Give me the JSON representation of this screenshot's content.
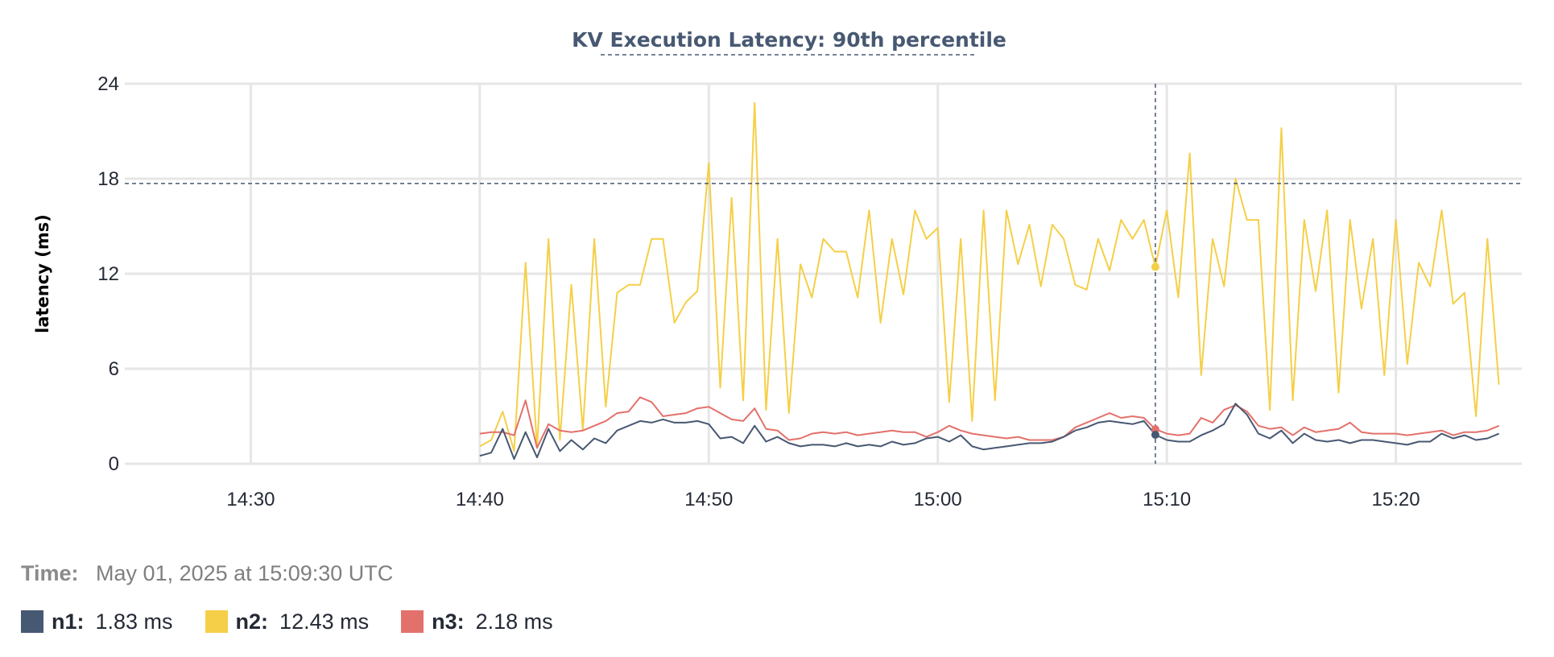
{
  "chart_data": {
    "type": "line",
    "title": "KV Execution Latency: 90th percentile",
    "ylabel": "latency (ms)",
    "xlabel": "",
    "ylim": [
      0,
      24
    ],
    "yticks": [
      0,
      6,
      12,
      18,
      24
    ],
    "xlim": [
      "14:24:30",
      "15:25:30"
    ],
    "xticks": [
      {
        "t": "14:30:00",
        "label": "14:30"
      },
      {
        "t": "14:40:00",
        "label": "14:40"
      },
      {
        "t": "14:50:00",
        "label": "14:50"
      },
      {
        "t": "15:00:00",
        "label": "15:00"
      },
      {
        "t": "15:10:00",
        "label": "15:10"
      },
      {
        "t": "15:20:00",
        "label": "15:20"
      }
    ],
    "grid": true,
    "x": [
      "14:40:00",
      "14:40:30",
      "14:41:00",
      "14:41:30",
      "14:42:00",
      "14:42:30",
      "14:43:00",
      "14:43:30",
      "14:44:00",
      "14:44:30",
      "14:45:00",
      "14:45:30",
      "14:46:00",
      "14:46:30",
      "14:47:00",
      "14:47:30",
      "14:48:00",
      "14:48:30",
      "14:49:00",
      "14:49:30",
      "14:50:00",
      "14:50:30",
      "14:51:00",
      "14:51:30",
      "14:52:00",
      "14:52:30",
      "14:53:00",
      "14:53:30",
      "14:54:00",
      "14:54:30",
      "14:55:00",
      "14:55:30",
      "14:56:00",
      "14:56:30",
      "14:57:00",
      "14:57:30",
      "14:58:00",
      "14:58:30",
      "14:59:00",
      "14:59:30",
      "15:00:00",
      "15:00:30",
      "15:01:00",
      "15:01:30",
      "15:02:00",
      "15:02:30",
      "15:03:00",
      "15:03:30",
      "15:04:00",
      "15:04:30",
      "15:05:00",
      "15:05:30",
      "15:06:00",
      "15:06:30",
      "15:07:00",
      "15:07:30",
      "15:08:00",
      "15:08:30",
      "15:09:00",
      "15:09:30",
      "15:10:00",
      "15:10:30",
      "15:11:00",
      "15:11:30",
      "15:12:00",
      "15:12:30",
      "15:13:00",
      "15:13:30",
      "15:14:00",
      "15:14:30",
      "15:15:00",
      "15:15:30",
      "15:16:00",
      "15:16:30",
      "15:17:00",
      "15:17:30",
      "15:18:00",
      "15:18:30",
      "15:19:00",
      "15:19:30",
      "15:20:00",
      "15:20:30",
      "15:21:00",
      "15:21:30",
      "15:22:00",
      "15:22:30",
      "15:23:00",
      "15:23:30",
      "15:24:00",
      "15:24:30"
    ],
    "series": [
      {
        "name": "n1",
        "color": "#475872",
        "values": [
          0.5,
          0.7,
          2.2,
          0.3,
          2.0,
          0.4,
          2.2,
          0.8,
          1.5,
          0.9,
          1.6,
          1.3,
          2.1,
          2.4,
          2.7,
          2.6,
          2.8,
          2.6,
          2.6,
          2.7,
          2.5,
          1.6,
          1.7,
          1.3,
          2.4,
          1.4,
          1.7,
          1.3,
          1.1,
          1.2,
          1.2,
          1.1,
          1.3,
          1.1,
          1.2,
          1.1,
          1.4,
          1.2,
          1.3,
          1.6,
          1.7,
          1.4,
          1.8,
          1.1,
          0.9,
          1.0,
          1.1,
          1.2,
          1.3,
          1.3,
          1.4,
          1.7,
          2.1,
          2.3,
          2.6,
          2.7,
          2.6,
          2.5,
          2.7,
          1.83,
          1.5,
          1.4,
          1.4,
          1.8,
          2.1,
          2.5,
          3.8,
          3.1,
          1.9,
          1.6,
          2.1,
          1.3,
          1.9,
          1.5,
          1.4,
          1.5,
          1.3,
          1.5,
          1.5,
          1.4,
          1.3,
          1.2,
          1.4,
          1.4,
          1.9,
          1.6,
          1.8,
          1.5,
          1.6,
          1.9
        ]
      },
      {
        "name": "n2",
        "color": "#f5cf47",
        "values": [
          1.1,
          1.5,
          3.3,
          0.8,
          12.7,
          1.0,
          14.2,
          1.5,
          11.3,
          2.1,
          14.2,
          3.6,
          10.8,
          11.3,
          11.3,
          14.2,
          14.2,
          8.9,
          10.2,
          10.9,
          19.0,
          4.8,
          16.8,
          4.0,
          22.8,
          3.4,
          14.2,
          3.2,
          12.6,
          10.5,
          14.2,
          13.4,
          13.4,
          10.5,
          16.0,
          8.9,
          14.2,
          10.7,
          16.0,
          14.2,
          14.9,
          3.9,
          14.2,
          2.7,
          16.0,
          4.0,
          16.0,
          12.6,
          15.1,
          11.2,
          15.1,
          14.2,
          11.3,
          11.0,
          14.2,
          12.2,
          15.4,
          14.2,
          15.4,
          12.43,
          16.0,
          10.5,
          19.6,
          5.6,
          14.2,
          11.2,
          18.0,
          15.4,
          15.4,
          3.4,
          21.2,
          4.0,
          15.4,
          10.9,
          16.0,
          4.5,
          15.4,
          9.8,
          14.2,
          5.6,
          15.4,
          6.3,
          12.7,
          11.2,
          16.0,
          10.1,
          10.8,
          3.0,
          14.2,
          5.0
        ]
      },
      {
        "name": "n3",
        "color": "#e3716b",
        "values": [
          1.9,
          2.0,
          2.0,
          1.8,
          4.0,
          1.0,
          2.5,
          2.1,
          2.0,
          2.1,
          2.4,
          2.7,
          3.2,
          3.3,
          4.2,
          3.9,
          3.0,
          3.1,
          3.2,
          3.5,
          3.6,
          3.2,
          2.8,
          2.7,
          3.5,
          2.2,
          2.1,
          1.5,
          1.6,
          1.9,
          2.0,
          1.9,
          2.0,
          1.8,
          1.9,
          2.0,
          2.1,
          2.0,
          2.0,
          1.7,
          2.0,
          2.4,
          2.1,
          1.9,
          1.8,
          1.7,
          1.6,
          1.7,
          1.5,
          1.5,
          1.5,
          1.7,
          2.3,
          2.6,
          2.9,
          3.2,
          2.9,
          3.0,
          2.9,
          2.18,
          1.9,
          1.8,
          1.9,
          2.9,
          2.6,
          3.4,
          3.7,
          3.3,
          2.4,
          2.2,
          2.3,
          1.8,
          2.3,
          2.0,
          2.1,
          2.2,
          2.6,
          2.0,
          1.9,
          1.9,
          1.9,
          1.8,
          1.9,
          2.0,
          2.1,
          1.8,
          2.0,
          2.0,
          2.1,
          2.4
        ]
      }
    ],
    "crosshair": {
      "x": "15:09:30",
      "y": 17.7
    }
  },
  "legend": {
    "time_label": "Time:",
    "time_value": "May 01, 2025 at 15:09:30 UTC",
    "items": [
      {
        "name": "n1:",
        "value": "1.83 ms",
        "color": "#475872"
      },
      {
        "name": "n2:",
        "value": "12.43 ms",
        "color": "#f5cf47"
      },
      {
        "name": "n3:",
        "value": "2.18 ms",
        "color": "#e3716b"
      }
    ]
  }
}
